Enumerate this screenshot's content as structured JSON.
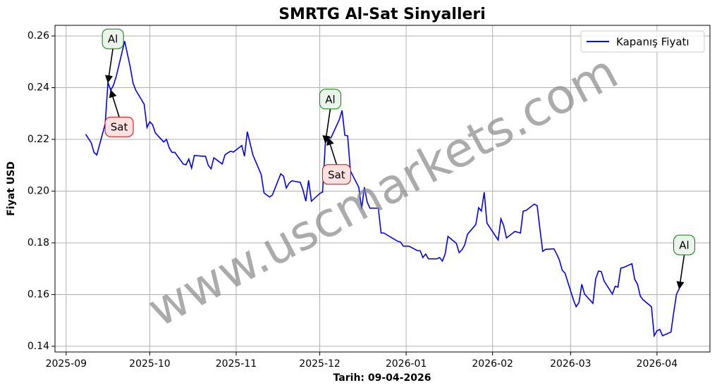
{
  "chart_data": {
    "type": "line",
    "title": "SMRTG Al-Sat Sinyalleri",
    "xlabel": "Tarih: 09-04-2026",
    "ylabel": "Fiyat USD",
    "watermark": "www.uscmarkets.com",
    "x": [
      "2025-09-08",
      "2025-09-10",
      "2025-09-11",
      "2025-09-12",
      "2025-09-15",
      "2025-09-16",
      "2025-09-17",
      "2025-09-18",
      "2025-09-19",
      "2025-09-22",
      "2025-09-24",
      "2025-09-25",
      "2025-09-26",
      "2025-09-29",
      "2025-09-30",
      "2025-10-01",
      "2025-10-02",
      "2025-10-03",
      "2025-10-06",
      "2025-10-07",
      "2025-10-08",
      "2025-10-09",
      "2025-10-10",
      "2025-10-13",
      "2025-10-14",
      "2025-10-15",
      "2025-10-16",
      "2025-10-17",
      "2025-10-20",
      "2025-10-21",
      "2025-10-22",
      "2025-10-23",
      "2025-10-24",
      "2025-10-27",
      "2025-10-28",
      "2025-10-29",
      "2025-10-30",
      "2025-10-31",
      "2025-11-03",
      "2025-11-04",
      "2025-11-05",
      "2025-11-07",
      "2025-11-10",
      "2025-11-11",
      "2025-11-12",
      "2025-11-13",
      "2025-11-14",
      "2025-11-17",
      "2025-11-18",
      "2025-11-19",
      "2025-11-20",
      "2025-11-21",
      "2025-11-24",
      "2025-11-25",
      "2025-11-26",
      "2025-11-27",
      "2025-11-28",
      "2025-12-01",
      "2025-12-02",
      "2025-12-03",
      "2025-12-04",
      "2025-12-05",
      "2025-12-08",
      "2025-12-09",
      "2025-12-10",
      "2025-12-11",
      "2025-12-12",
      "2025-12-15",
      "2025-12-16",
      "2025-12-17",
      "2025-12-18",
      "2025-12-19",
      "2025-12-22",
      "2025-12-23",
      "2025-12-24",
      "2025-12-26",
      "2025-12-29",
      "2025-12-30",
      "2025-12-31",
      "2026-01-02",
      "2026-01-05",
      "2026-01-06",
      "2026-01-07",
      "2026-01-08",
      "2026-01-09",
      "2026-01-12",
      "2026-01-13",
      "2026-01-14",
      "2026-01-15",
      "2026-01-16",
      "2026-01-19",
      "2026-01-20",
      "2026-01-21",
      "2026-01-22",
      "2026-01-23",
      "2026-01-26",
      "2026-01-27",
      "2026-01-28",
      "2026-01-29",
      "2026-01-30",
      "2026-02-02",
      "2026-02-03",
      "2026-02-04",
      "2026-02-05",
      "2026-02-06",
      "2026-02-09",
      "2026-02-10",
      "2026-02-11",
      "2026-02-12",
      "2026-02-13",
      "2026-02-16",
      "2026-02-17",
      "2026-02-18",
      "2026-02-19",
      "2026-02-20",
      "2026-02-23",
      "2026-02-24",
      "2026-02-25",
      "2026-02-26",
      "2026-02-27",
      "2026-03-02",
      "2026-03-03",
      "2026-03-04",
      "2026-03-05",
      "2026-03-06",
      "2026-03-09",
      "2026-03-10",
      "2026-03-11",
      "2026-03-12",
      "2026-03-13",
      "2026-03-16",
      "2026-03-17",
      "2026-03-18",
      "2026-03-19",
      "2026-03-20",
      "2026-03-23",
      "2026-03-24",
      "2026-03-25",
      "2026-03-26",
      "2026-03-27",
      "2026-03-30",
      "2026-03-31",
      "2026-04-01",
      "2026-04-02",
      "2026-04-03",
      "2026-04-06",
      "2026-04-07",
      "2026-04-08",
      "2026-04-09"
    ],
    "series": [
      {
        "name": "Kapanış Fiyatı",
        "color": "#0000ff",
        "values": [
          0.222,
          0.2187,
          0.215,
          0.214,
          0.226,
          0.242,
          0.239,
          0.241,
          0.2445,
          0.258,
          0.248,
          0.2418,
          0.239,
          0.2336,
          0.2246,
          0.2268,
          0.2257,
          0.2225,
          0.219,
          0.22,
          0.2167,
          0.215,
          0.215,
          0.2105,
          0.2102,
          0.2124,
          0.2089,
          0.2138,
          0.2135,
          0.2135,
          0.21,
          0.2086,
          0.2129,
          0.2105,
          0.214,
          0.2148,
          0.2154,
          0.2151,
          0.2176,
          0.2135,
          0.223,
          0.214,
          0.2064,
          0.1993,
          0.1985,
          0.1977,
          0.1985,
          0.2067,
          0.2058,
          0.2012,
          0.2031,
          0.204,
          0.2034,
          0.2004,
          0.1961,
          0.2042,
          0.1961,
          0.1991,
          0.1996,
          0.2187,
          0.2206,
          0.2206,
          0.2276,
          0.2312,
          0.2216,
          0.2214,
          0.2078,
          0.2015,
          0.1931,
          0.2015,
          0.1958,
          0.1934,
          0.1934,
          0.1838,
          0.1838,
          0.1825,
          0.1806,
          0.1803,
          0.1787,
          0.1787,
          0.177,
          0.177,
          0.1743,
          0.1757,
          0.1738,
          0.1738,
          0.1743,
          0.173,
          0.1757,
          0.1825,
          0.1798,
          0.1762,
          0.1773,
          0.1792,
          0.1833,
          0.1871,
          0.1936,
          0.1923,
          0.1996,
          0.1876,
          0.1827,
          0.1811,
          0.1893,
          0.1866,
          0.1819,
          0.1844,
          0.1841,
          0.1838,
          0.1923,
          0.1925,
          0.195,
          0.1944,
          0.1852,
          0.1767,
          0.1775,
          0.1777,
          0.1757,
          0.1733,
          0.1694,
          0.1683,
          0.158,
          0.1553,
          0.1569,
          0.164,
          0.1602,
          0.1566,
          0.1661,
          0.1691,
          0.1689,
          0.1653,
          0.1602,
          0.1632,
          0.1629,
          0.1702,
          0.1705,
          0.1719,
          0.1659,
          0.164,
          0.1594,
          0.158,
          0.1553,
          0.1441,
          0.146,
          0.1465,
          0.1441,
          0.1455,
          0.1531,
          0.1602,
          0.1623
        ]
      }
    ],
    "annotations": [
      {
        "text": "Al",
        "x": "2025-09-16",
        "y": 0.242,
        "kind": "buy"
      },
      {
        "text": "Sat",
        "x": "2025-09-17",
        "y": 0.239,
        "kind": "sell"
      },
      {
        "text": "Al",
        "x": "2025-12-03",
        "y": 0.2187,
        "kind": "buy"
      },
      {
        "text": "Sat",
        "x": "2025-12-04",
        "y": 0.2206,
        "kind": "sell"
      },
      {
        "text": "Al",
        "x": "2026-04-09",
        "y": 0.1623,
        "kind": "buy"
      }
    ],
    "xlim": [
      "2025-08-28",
      "2026-04-20"
    ],
    "xticks": [
      {
        "value": "2025-09-01",
        "label": "2025-09"
      },
      {
        "value": "2025-10-01",
        "label": "2025-10"
      },
      {
        "value": "2025-11-01",
        "label": "2025-11"
      },
      {
        "value": "2025-12-01",
        "label": "2025-12"
      },
      {
        "value": "2026-01-01",
        "label": "2026-01"
      },
      {
        "value": "2026-02-01",
        "label": "2026-02"
      },
      {
        "value": "2026-03-01",
        "label": "2026-03"
      },
      {
        "value": "2026-04-01",
        "label": "2026-04"
      }
    ],
    "ylim": [
      0.1378,
      0.2641
    ],
    "yticks": [
      0.14,
      0.16,
      0.18,
      {
        "value": 0.2,
        "label": "0.20"
      },
      0.22,
      0.24,
      0.26
    ],
    "grid": true,
    "legend": "upper right"
  }
}
